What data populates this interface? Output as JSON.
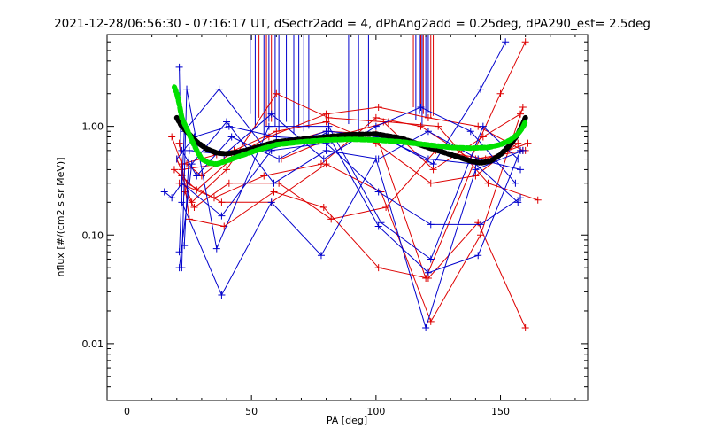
{
  "chart_data": {
    "type": "line",
    "title": "2021-12-28/06:56:30 - 07:16:17 UT, dSectr2add = 4, dPhAng2add = 0.25deg, dPA290_est=    2.5deg",
    "xlabel": "PA [deg]",
    "ylabel": "nflux [#/(cm2 s sr MeV)]",
    "xlim": [
      -8,
      185
    ],
    "ylim": [
      0.003,
      7
    ],
    "yscale": "log",
    "xticks": [
      0,
      50,
      100,
      150
    ],
    "xtick_labels": [
      "0",
      "50",
      "100",
      "150"
    ],
    "yticks": [
      0.01,
      0.1,
      1.0
    ],
    "ytick_labels": [
      "0.01",
      "0.10",
      "1.00"
    ],
    "grid": false,
    "legend": "none",
    "colors": {
      "red": "#dd0000",
      "blue": "#0000cc",
      "black": "#000000",
      "green": "#00e000"
    },
    "series": [
      {
        "color": "red",
        "style": "line-plus",
        "x": [
          18,
          22,
          36,
          58,
          80,
          100,
          120,
          140,
          160
        ],
        "y": [
          0.8,
          0.45,
          0.55,
          0.65,
          0.9,
          0.85,
          0.04,
          0.5,
          0.6
        ]
      },
      {
        "color": "red",
        "style": "line-plus",
        "x": [
          20,
          24,
          38,
          58,
          80,
          102,
          122,
          142,
          159
        ],
        "y": [
          0.5,
          0.3,
          0.2,
          0.2,
          0.45,
          0.25,
          0.016,
          0.1,
          1.5
        ]
      },
      {
        "color": "red",
        "style": "line-plus",
        "x": [
          21,
          25,
          39,
          59,
          79,
          101,
          121,
          141,
          160
        ],
        "y": [
          0.7,
          0.14,
          0.12,
          0.25,
          0.18,
          0.05,
          0.04,
          0.13,
          0.014
        ]
      },
      {
        "color": "red",
        "style": "line-plus",
        "x": [
          22,
          26,
          40,
          60,
          81,
          103,
          123,
          143,
          158
        ],
        "y": [
          0.35,
          0.2,
          0.4,
          2.0,
          1.2,
          1.1,
          0.4,
          0.8,
          1.3
        ]
      },
      {
        "color": "red",
        "style": "line-plus",
        "x": [
          23,
          27,
          41,
          61,
          82,
          104,
          124,
          144,
          161
        ],
        "y": [
          0.25,
          0.18,
          0.3,
          0.3,
          0.14,
          0.18,
          0.6,
          0.5,
          0.7
        ]
      },
      {
        "color": "red",
        "style": "line-plus",
        "x": [
          19,
          28,
          42,
          62,
          83,
          105,
          125,
          145,
          165
        ],
        "y": [
          0.4,
          0.26,
          0.5,
          0.5,
          0.8,
          1.1,
          1.0,
          0.3,
          0.21
        ]
      },
      {
        "color": "red",
        "style": "line-plus",
        "x": [
          24,
          30,
          43,
          60,
          80,
          100,
          122,
          140,
          157
        ],
        "y": [
          0.45,
          0.35,
          0.6,
          0.9,
          1.1,
          0.7,
          0.3,
          0.35,
          0.7
        ]
      },
      {
        "color": "red",
        "style": "line-plus",
        "x": [
          21,
          35,
          55,
          78,
          100,
          118,
          138,
          150,
          160
        ],
        "y": [
          0.3,
          0.22,
          0.35,
          0.45,
          1.2,
          1.0,
          0.5,
          2.0,
          6.0
        ]
      },
      {
        "color": "red",
        "style": "line-plus",
        "x": [
          22,
          37,
          57,
          80,
          101,
          121,
          141,
          159
        ],
        "y": [
          0.4,
          0.45,
          0.8,
          1.3,
          1.5,
          1.2,
          1.0,
          0.6
        ]
      },
      {
        "color": "blue",
        "style": "line-plus",
        "x": [
          15,
          18,
          22,
          38,
          58,
          80,
          101,
          122,
          142,
          158
        ],
        "y": [
          0.25,
          0.22,
          0.3,
          0.15,
          0.6,
          0.7,
          0.25,
          0.125,
          0.125,
          0.22
        ]
      },
      {
        "color": "blue",
        "style": "line-plus",
        "x": [
          21,
          22,
          38,
          58,
          78,
          100,
          120,
          140,
          159
        ],
        "y": [
          3.5,
          0.2,
          0.028,
          0.2,
          0.065,
          0.5,
          0.014,
          0.4,
          0.6
        ]
      },
      {
        "color": "blue",
        "style": "line-plus",
        "x": [
          21,
          23,
          37,
          56,
          80,
          101,
          121,
          141,
          158
        ],
        "y": [
          0.07,
          0.9,
          2.2,
          0.6,
          0.9,
          0.12,
          0.045,
          0.065,
          0.6
        ]
      },
      {
        "color": "blue",
        "style": "line-plus",
        "x": [
          22,
          24,
          36,
          57,
          81,
          102,
          122,
          143,
          157
        ],
        "y": [
          0.05,
          2.2,
          0.075,
          1.0,
          1.0,
          0.13,
          0.06,
          1.0,
          0.5
        ]
      },
      {
        "color": "blue",
        "style": "line-plus",
        "x": [
          23,
          25,
          39,
          58,
          79,
          100,
          118,
          138,
          156
        ],
        "y": [
          0.08,
          0.6,
          0.55,
          1.3,
          0.5,
          1.0,
          1.5,
          0.9,
          0.3
        ]
      },
      {
        "color": "blue",
        "style": "line-plus",
        "x": [
          21,
          26,
          40,
          59,
          80,
          101,
          121,
          141,
          158
        ],
        "y": [
          0.05,
          0.45,
          1.1,
          0.3,
          0.6,
          0.5,
          0.9,
          0.5,
          0.4
        ]
      },
      {
        "color": "blue",
        "style": "line-plus",
        "x": [
          20,
          27,
          41,
          60,
          82,
          103,
          123,
          142,
          152
        ],
        "y": [
          0.5,
          0.8,
          1.0,
          0.8,
          0.75,
          0.8,
          0.45,
          2.2,
          6.0
        ]
      },
      {
        "color": "blue",
        "style": "line-plus",
        "x": [
          22,
          28,
          42,
          61,
          81,
          102,
          121,
          140,
          157
        ],
        "y": [
          0.6,
          0.35,
          0.8,
          0.5,
          0.9,
          0.8,
          0.5,
          0.45,
          0.2
        ]
      },
      {
        "color": "black",
        "style": "thick-dashed",
        "x": [
          20,
          22,
          25,
          28,
          32,
          36,
          40,
          45,
          50,
          55,
          60,
          70,
          80,
          90,
          100,
          110,
          120,
          130,
          138,
          142,
          146,
          150,
          154,
          157,
          159,
          160
        ],
        "y": [
          1.2,
          1.0,
          0.85,
          0.72,
          0.62,
          0.57,
          0.56,
          0.58,
          0.62,
          0.67,
          0.72,
          0.76,
          0.8,
          0.84,
          0.85,
          0.78,
          0.65,
          0.55,
          0.48,
          0.46,
          0.48,
          0.55,
          0.68,
          0.85,
          1.05,
          1.2
        ]
      },
      {
        "color": "green",
        "style": "thick-dashed",
        "x": [
          19,
          20,
          21,
          22,
          24,
          26,
          28,
          30,
          33,
          36,
          40,
          45,
          50,
          55,
          60,
          70,
          80,
          90,
          100,
          110,
          120,
          130,
          138,
          145,
          150,
          154,
          157,
          159,
          160
        ],
        "y": [
          2.3,
          2.0,
          1.6,
          1.2,
          0.95,
          0.75,
          0.6,
          0.5,
          0.46,
          0.45,
          0.48,
          0.53,
          0.58,
          0.63,
          0.68,
          0.72,
          0.75,
          0.76,
          0.75,
          0.72,
          0.68,
          0.64,
          0.63,
          0.64,
          0.68,
          0.75,
          0.85,
          0.98,
          1.1
        ]
      }
    ],
    "spikes": {
      "color": "blue",
      "x": [
        49.5,
        51.5,
        55,
        57,
        59.5,
        61,
        64,
        67,
        69,
        71,
        73,
        89,
        93,
        97,
        116,
        117.5,
        118.5,
        120,
        121
      ],
      "y_top": 7,
      "y_bottom": [
        1.3,
        0.95,
        0.8,
        1.1,
        1.0,
        0.9,
        1.1,
        0.85,
        1.0,
        0.9,
        0.95,
        1.05,
        0.9,
        1.0,
        1.15,
        1.3,
        1.0,
        1.2,
        1.35
      ]
    },
    "red_spikes": {
      "color": "red",
      "x": [
        53,
        56,
        58,
        115,
        118,
        119,
        122,
        123
      ],
      "y_top": 7,
      "y_bottom": [
        1.2,
        1.0,
        1.1,
        1.5,
        1.4,
        1.3,
        1.2,
        1.25
      ]
    }
  }
}
